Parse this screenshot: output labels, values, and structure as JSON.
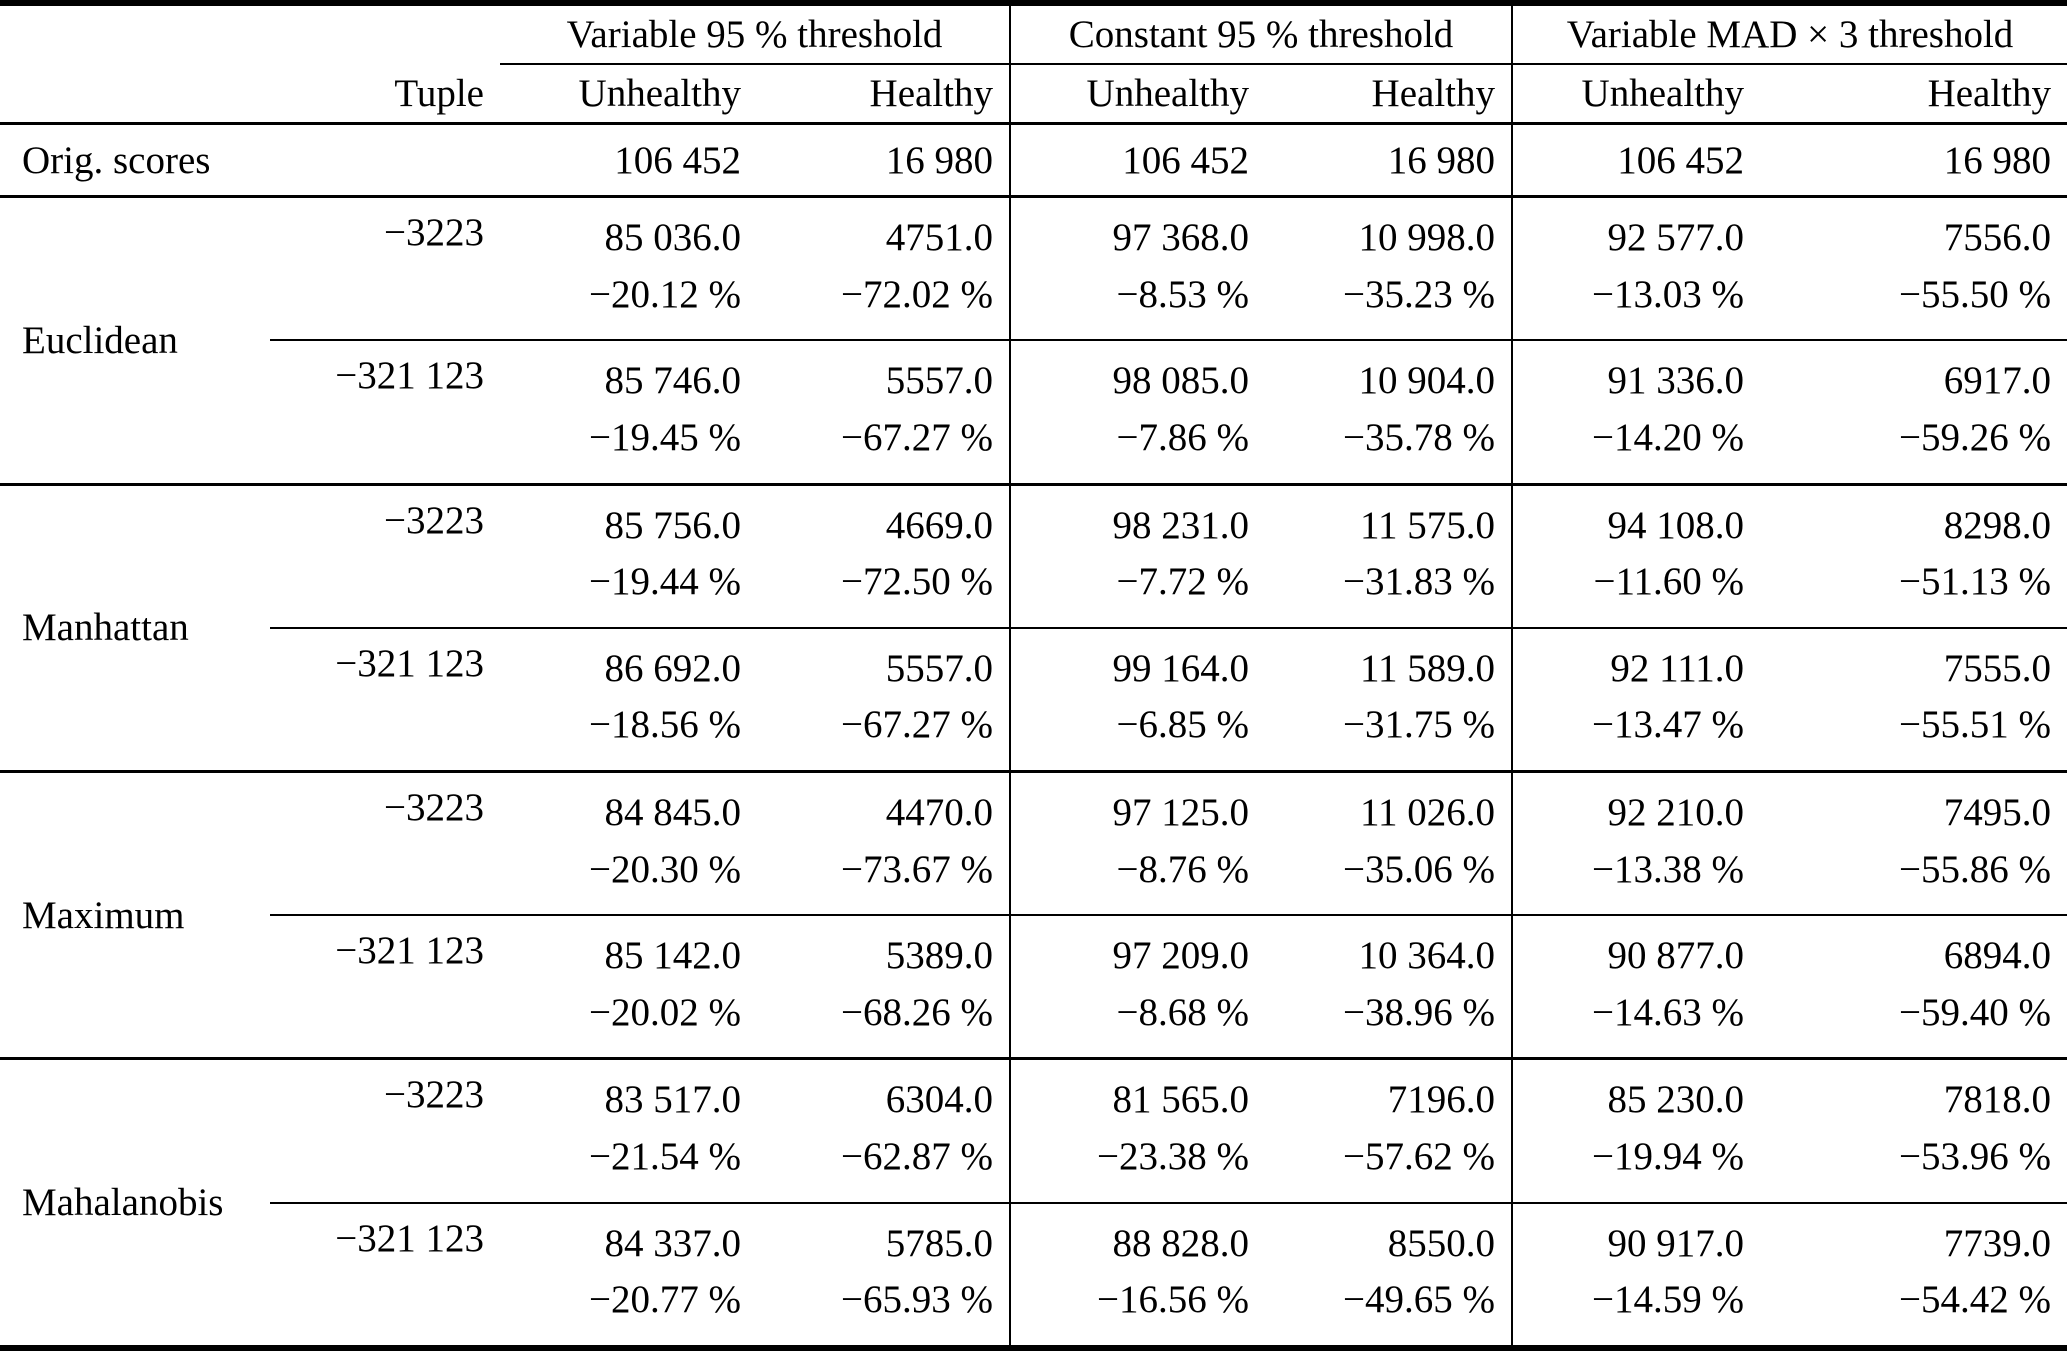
{
  "table": {
    "col_groups": [
      {
        "label": "Variable 95 % threshold"
      },
      {
        "label": "Constant 95 % threshold"
      },
      {
        "label": "Variable MAD × 3 threshold"
      }
    ],
    "tuple_header": "Tuple",
    "sub_headers": [
      "Unhealthy",
      "Healthy",
      "Unhealthy",
      "Healthy",
      "Unhealthy",
      "Healthy"
    ],
    "orig_row": {
      "label": "Orig. scores",
      "values": [
        "106 452",
        "16 980",
        "106 452",
        "16 980",
        "106 452",
        "16 980"
      ]
    },
    "groups": [
      {
        "metric": "Euclidean",
        "rows": [
          {
            "tuple": "−3223",
            "cells": [
              {
                "value": "85 036.0",
                "pct": "−20.12 %"
              },
              {
                "value": "4751.0",
                "pct": "−72.02 %"
              },
              {
                "value": "97 368.0",
                "pct": "−8.53 %"
              },
              {
                "value": "10 998.0",
                "pct": "−35.23 %"
              },
              {
                "value": "92 577.0",
                "pct": "−13.03 %"
              },
              {
                "value": "7556.0",
                "pct": "−55.50 %"
              }
            ]
          },
          {
            "tuple": "−321 123",
            "cells": [
              {
                "value": "85 746.0",
                "pct": "−19.45 %"
              },
              {
                "value": "5557.0",
                "pct": "−67.27 %"
              },
              {
                "value": "98 085.0",
                "pct": "−7.86 %"
              },
              {
                "value": "10 904.0",
                "pct": "−35.78 %"
              },
              {
                "value": "91 336.0",
                "pct": "−14.20 %"
              },
              {
                "value": "6917.0",
                "pct": "−59.26 %"
              }
            ]
          }
        ]
      },
      {
        "metric": "Manhattan",
        "rows": [
          {
            "tuple": "−3223",
            "cells": [
              {
                "value": "85 756.0",
                "pct": "−19.44 %"
              },
              {
                "value": "4669.0",
                "pct": "−72.50 %"
              },
              {
                "value": "98 231.0",
                "pct": "−7.72 %"
              },
              {
                "value": "11 575.0",
                "pct": "−31.83 %"
              },
              {
                "value": "94 108.0",
                "pct": "−11.60 %"
              },
              {
                "value": "8298.0",
                "pct": "−51.13 %"
              }
            ]
          },
          {
            "tuple": "−321 123",
            "cells": [
              {
                "value": "86 692.0",
                "pct": "−18.56 %"
              },
              {
                "value": "5557.0",
                "pct": "−67.27 %"
              },
              {
                "value": "99 164.0",
                "pct": "−6.85 %"
              },
              {
                "value": "11 589.0",
                "pct": "−31.75 %"
              },
              {
                "value": "92 111.0",
                "pct": "−13.47 %"
              },
              {
                "value": "7555.0",
                "pct": "−55.51 %"
              }
            ]
          }
        ]
      },
      {
        "metric": "Maximum",
        "rows": [
          {
            "tuple": "−3223",
            "cells": [
              {
                "value": "84 845.0",
                "pct": "−20.30 %"
              },
              {
                "value": "4470.0",
                "pct": "−73.67 %"
              },
              {
                "value": "97 125.0",
                "pct": "−8.76 %"
              },
              {
                "value": "11 026.0",
                "pct": "−35.06 %"
              },
              {
                "value": "92 210.0",
                "pct": "−13.38 %"
              },
              {
                "value": "7495.0",
                "pct": "−55.86 %"
              }
            ]
          },
          {
            "tuple": "−321 123",
            "cells": [
              {
                "value": "85 142.0",
                "pct": "−20.02 %"
              },
              {
                "value": "5389.0",
                "pct": "−68.26 %"
              },
              {
                "value": "97 209.0",
                "pct": "−8.68 %"
              },
              {
                "value": "10 364.0",
                "pct": "−38.96 %"
              },
              {
                "value": "90 877.0",
                "pct": "−14.63 %"
              },
              {
                "value": "6894.0",
                "pct": "−59.40 %"
              }
            ]
          }
        ]
      },
      {
        "metric": "Mahalanobis",
        "rows": [
          {
            "tuple": "−3223",
            "cells": [
              {
                "value": "83 517.0",
                "pct": "−21.54 %"
              },
              {
                "value": "6304.0",
                "pct": "−62.87 %"
              },
              {
                "value": "81 565.0",
                "pct": "−23.38 %"
              },
              {
                "value": "7196.0",
                "pct": "−57.62 %"
              },
              {
                "value": "85 230.0",
                "pct": "−19.94 %"
              },
              {
                "value": "7818.0",
                "pct": "−53.96 %"
              }
            ]
          },
          {
            "tuple": "−321 123",
            "cells": [
              {
                "value": "84 337.0",
                "pct": "−20.77 %"
              },
              {
                "value": "5785.0",
                "pct": "−65.93 %"
              },
              {
                "value": "88 828.0",
                "pct": "−16.56 %"
              },
              {
                "value": "8550.0",
                "pct": "−49.65 %"
              },
              {
                "value": "90 917.0",
                "pct": "−14.59 %"
              },
              {
                "value": "7739.0",
                "pct": "−54.42 %"
              }
            ]
          }
        ]
      }
    ]
  }
}
